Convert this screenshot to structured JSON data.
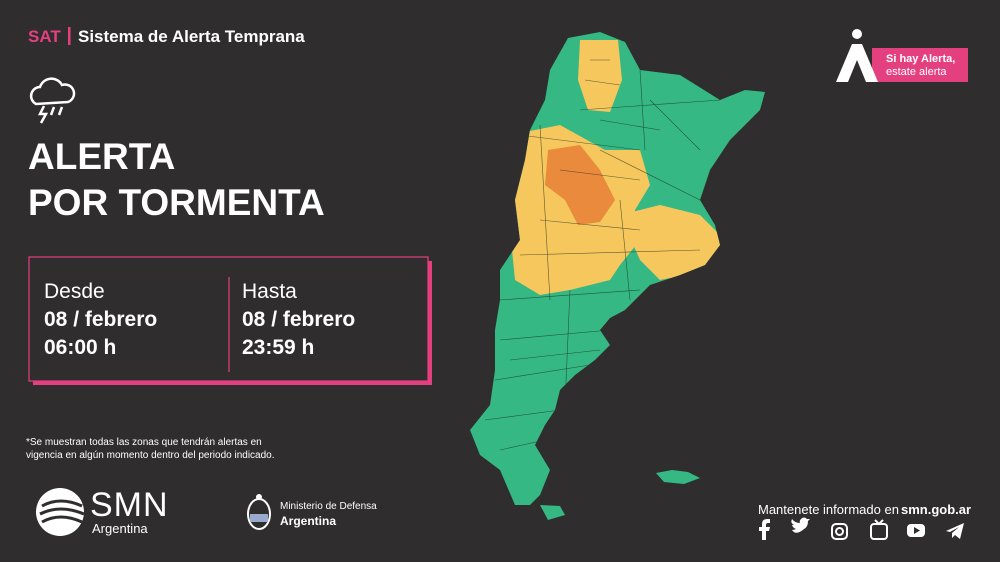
{
  "header": {
    "program": "SAT",
    "system": "Sistema de Alerta Temprana"
  },
  "badge": {
    "line1": "Si hay Alerta,",
    "line2": "estate alerta"
  },
  "alert": {
    "title_lines": [
      "ALERTA",
      "POR TORMENTA"
    ]
  },
  "period": {
    "from": {
      "label": "Desde",
      "date": "08 / febrero",
      "time": "06:00 h"
    },
    "to": {
      "label": "Hasta",
      "date": "08 / febrero",
      "time": "23:59 h"
    }
  },
  "footnote": [
    "*Se muestran todas las zonas que tendrán alertas en",
    "vigencia en algún momento dentro del periodo indicado."
  ],
  "logos": {
    "smn": {
      "name": "SMN",
      "country": "Argentina"
    },
    "ministry": {
      "name": "Ministerio de Defensa",
      "country": "Argentina"
    }
  },
  "footer": {
    "text": "Mantenete informado en",
    "link": "smn.gob.ar"
  }
}
